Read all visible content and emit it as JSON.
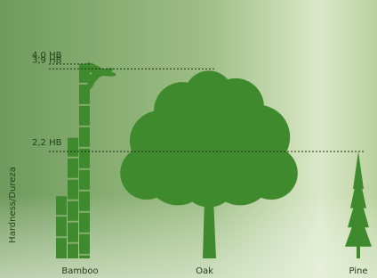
{
  "chart_data": {
    "type": "bar",
    "y_label": "Hardness/Dureza",
    "categories": [
      "Bamboo",
      "Oak",
      "Pine"
    ],
    "values": [
      4.0,
      3.9,
      2.2
    ],
    "value_labels": [
      "4,0 HB",
      "3,9 HB",
      "2,2 HB"
    ],
    "color": "#3e8a2c",
    "ylim": [
      0,
      4.4
    ]
  }
}
